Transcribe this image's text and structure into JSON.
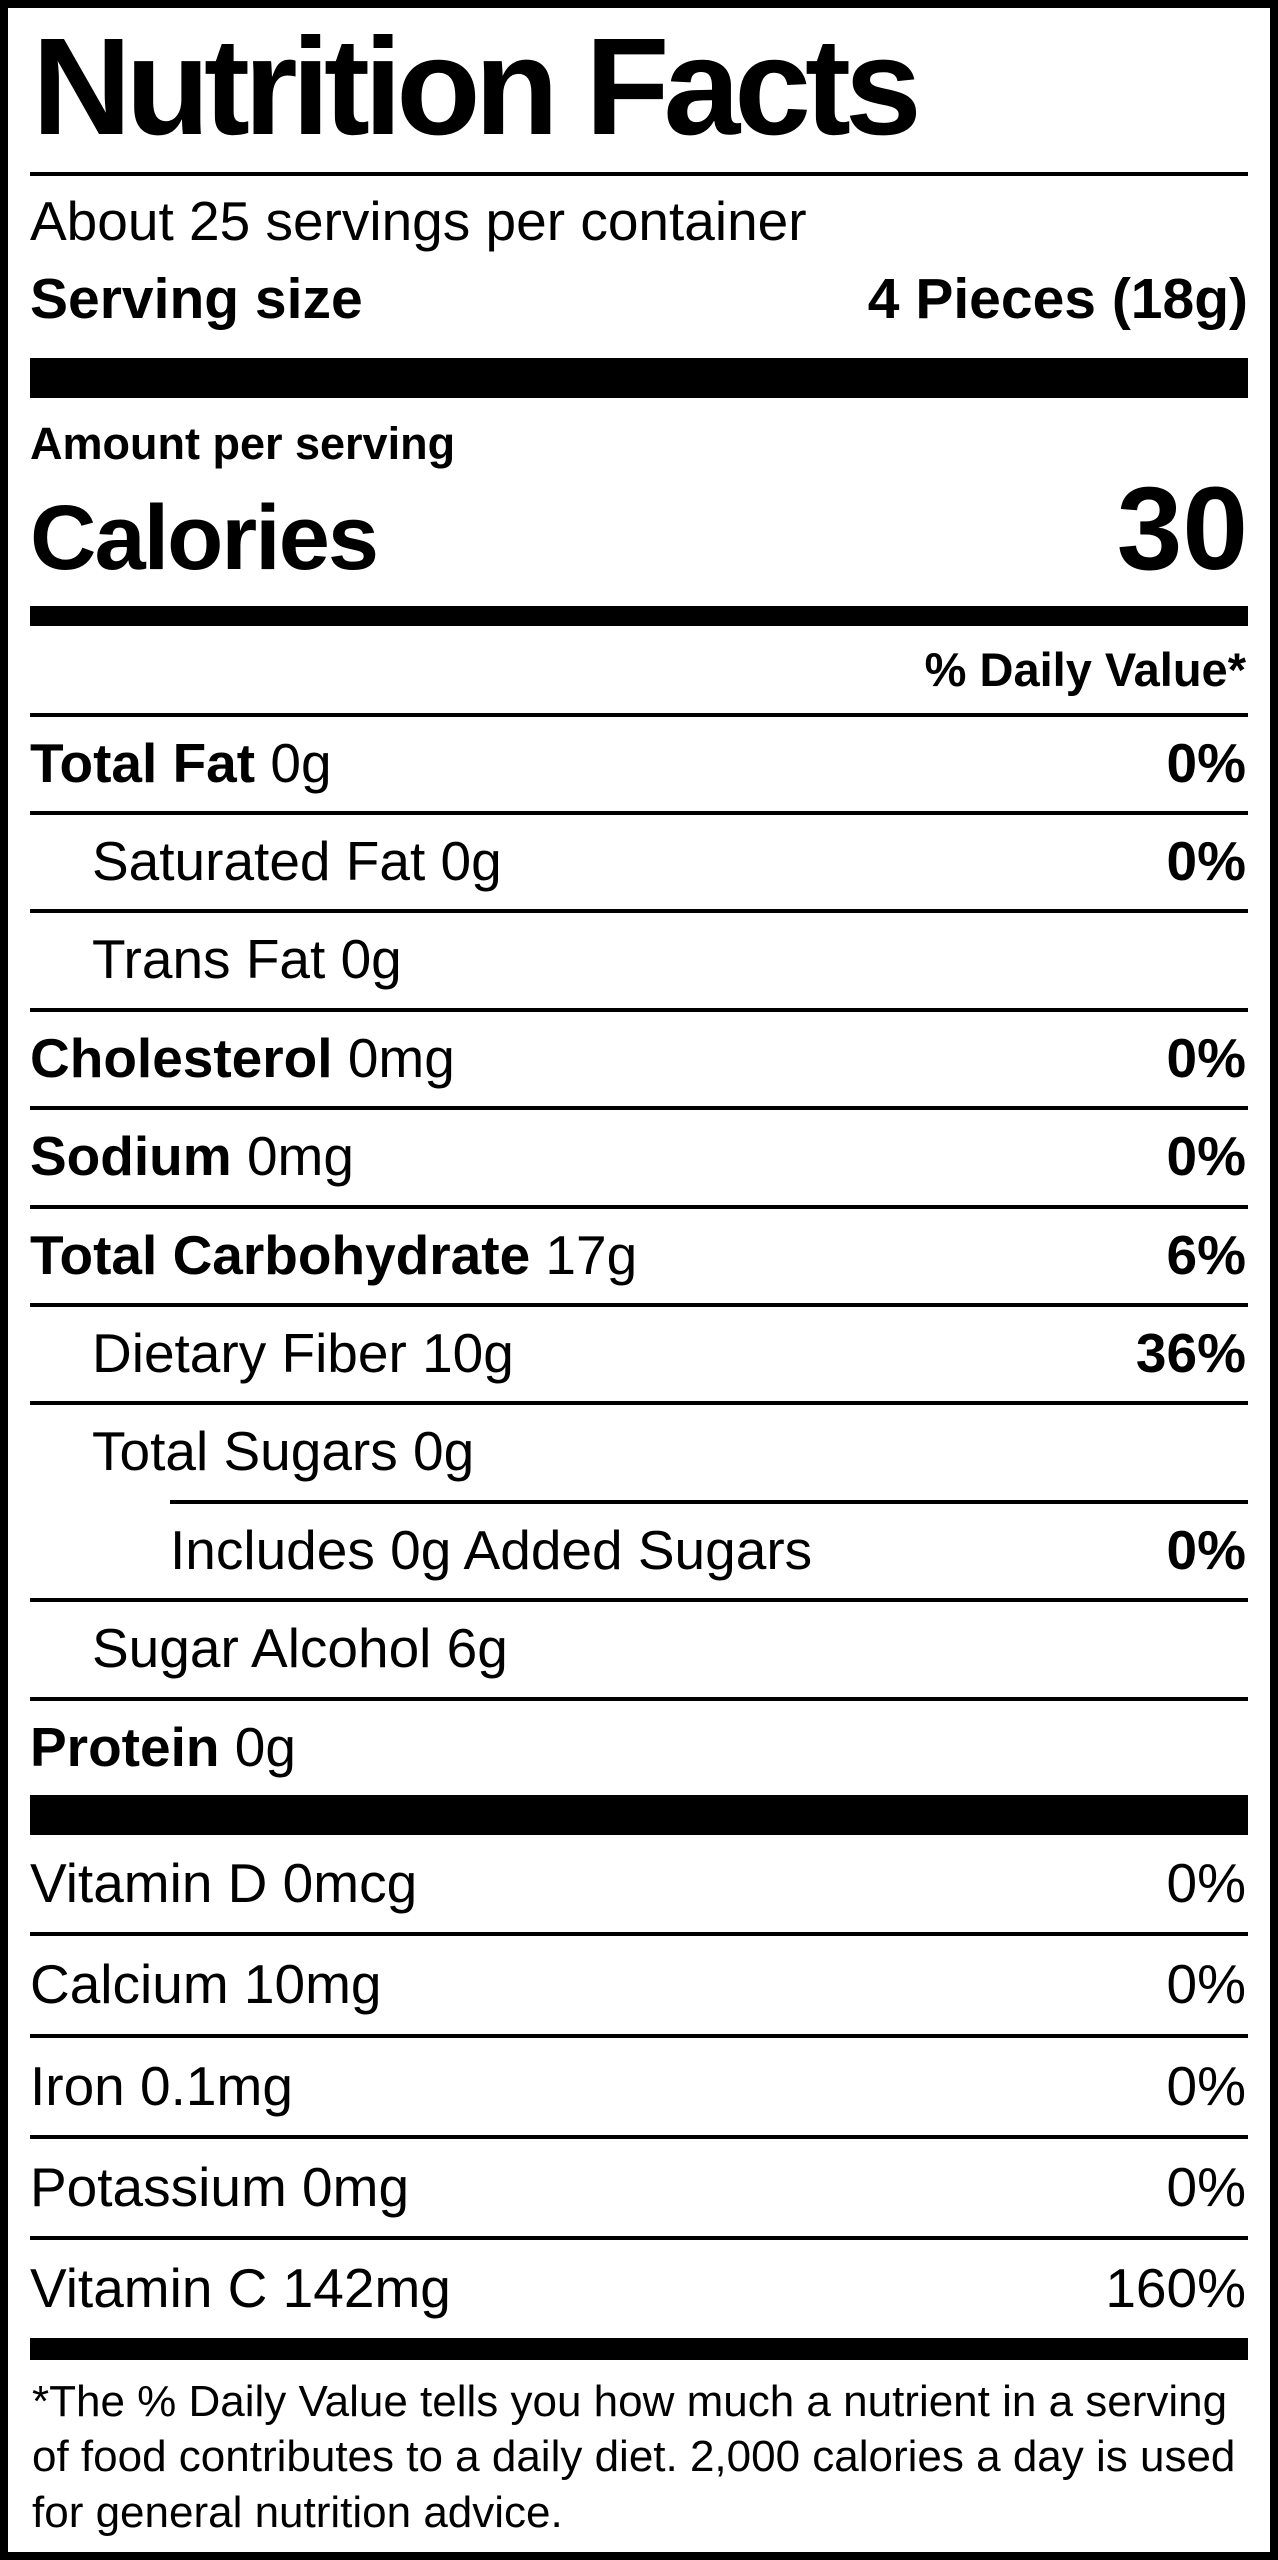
{
  "label": {
    "title": "Nutrition Facts",
    "servings_per_container": "About 25 servings per container",
    "serving_size_label": "Serving size",
    "serving_size_value": "4 Pieces (18g)",
    "amount_per_serving": "Amount per serving",
    "calories_label": "Calories",
    "calories_value": "30",
    "daily_value_header": "% Daily Value*",
    "nutrients": [
      {
        "name": "Total Fat",
        "amount": "0g",
        "dv": "0%",
        "bold": true,
        "indent": 0,
        "partial_rule": false
      },
      {
        "name": "Saturated Fat",
        "amount": "0g",
        "dv": "0%",
        "bold": false,
        "indent": 1,
        "partial_rule": false
      },
      {
        "name": "Trans Fat",
        "amount": "0g",
        "dv": "",
        "bold": false,
        "indent": 1,
        "partial_rule": false
      },
      {
        "name": "Cholesterol",
        "amount": "0mg",
        "dv": "0%",
        "bold": true,
        "indent": 0,
        "partial_rule": false
      },
      {
        "name": "Sodium",
        "amount": "0mg",
        "dv": "0%",
        "bold": true,
        "indent": 0,
        "partial_rule": false
      },
      {
        "name": "Total Carbohydrate",
        "amount": "17g",
        "dv": "6%",
        "bold": true,
        "indent": 0,
        "partial_rule": false
      },
      {
        "name": "Dietary Fiber",
        "amount": "10g",
        "dv": "36%",
        "bold": false,
        "indent": 1,
        "partial_rule": false
      },
      {
        "name": "Total Sugars",
        "amount": "0g",
        "dv": "",
        "bold": false,
        "indent": 1,
        "partial_rule": false
      },
      {
        "name": "Includes 0g Added Sugars",
        "amount": "",
        "dv": "0%",
        "bold": false,
        "indent": 2,
        "partial_rule": true
      },
      {
        "name": "Sugar Alcohol",
        "amount": "6g",
        "dv": "",
        "bold": false,
        "indent": 1,
        "partial_rule": false
      },
      {
        "name": "Protein",
        "amount": "0g",
        "dv": "",
        "bold": true,
        "indent": 0,
        "partial_rule": false
      }
    ],
    "vitamins": [
      {
        "name": "Vitamin D",
        "amount": "0mcg",
        "dv": "0%"
      },
      {
        "name": "Calcium",
        "amount": "10mg",
        "dv": "0%"
      },
      {
        "name": "Iron",
        "amount": "0.1mg",
        "dv": "0%"
      },
      {
        "name": "Potassium",
        "amount": "0mg",
        "dv": "0%"
      },
      {
        "name": "Vitamin C",
        "amount": "142mg",
        "dv": "160%"
      }
    ],
    "footnote": "*The % Daily Value tells you how much a nutrient in a serving of food contributes to a daily diet. 2,000 calories a day is used for general nutrition advice."
  }
}
